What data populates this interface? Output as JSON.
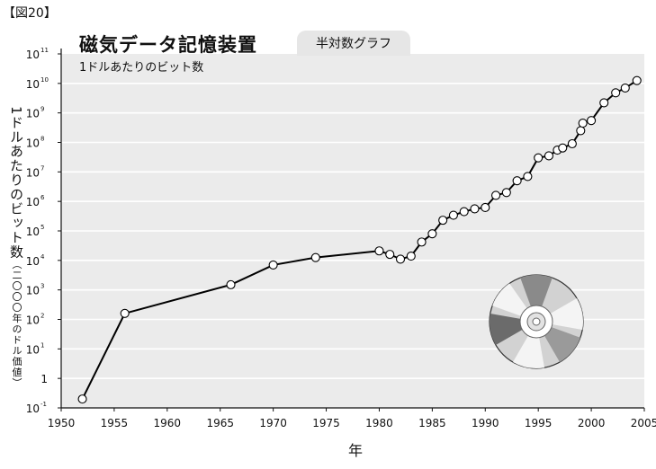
{
  "figure_label": "【図20】",
  "scale_tab": "半対数グラフ",
  "chart_data": {
    "type": "line",
    "title": "磁気データ記憶装置",
    "subtitle": "1ドルあたりのビット数",
    "xlabel": "年",
    "ylabel": "1ドルあたりのビット数",
    "ylabel_note": "（二〇〇〇年のドル価値）",
    "y_scale": "log10",
    "xlim": [
      1950,
      2005
    ],
    "ylim_exponent": [
      -1,
      11
    ],
    "x_ticks": [
      1950,
      1955,
      1960,
      1965,
      1970,
      1975,
      1980,
      1985,
      1990,
      1995,
      2000,
      2005
    ],
    "y_ticks": [
      {
        "base": "10",
        "exp": "11"
      },
      {
        "base": "10",
        "exp": "10"
      },
      {
        "base": "10",
        "exp": "9"
      },
      {
        "base": "10",
        "exp": "8"
      },
      {
        "base": "10",
        "exp": "7"
      },
      {
        "base": "10",
        "exp": "6"
      },
      {
        "base": "10",
        "exp": "5"
      },
      {
        "base": "10",
        "exp": "4"
      },
      {
        "base": "10",
        "exp": "3"
      },
      {
        "base": "10",
        "exp": "2"
      },
      {
        "base": "10",
        "exp": "1"
      },
      {
        "base": "1",
        "exp": ""
      },
      {
        "base": "10",
        "exp": "-1"
      }
    ],
    "grid": true,
    "background": "#ebebeb",
    "line_color": "#000000",
    "marker": "open-circle",
    "points": [
      {
        "x": 1952,
        "y": 0.2
      },
      {
        "x": 1956,
        "y": 160
      },
      {
        "x": 1966,
        "y": 1500
      },
      {
        "x": 1970,
        "y": 7000
      },
      {
        "x": 1974,
        "y": 12500
      },
      {
        "x": 1980,
        "y": 21000
      },
      {
        "x": 1981,
        "y": 16000
      },
      {
        "x": 1982,
        "y": 11000
      },
      {
        "x": 1983,
        "y": 14000
      },
      {
        "x": 1984,
        "y": 42000
      },
      {
        "x": 1985,
        "y": 80000
      },
      {
        "x": 1986,
        "y": 230000
      },
      {
        "x": 1987,
        "y": 340000
      },
      {
        "x": 1988,
        "y": 450000
      },
      {
        "x": 1989,
        "y": 560000
      },
      {
        "x": 1990,
        "y": 620000
      },
      {
        "x": 1991,
        "y": 1600000
      },
      {
        "x": 1992,
        "y": 2000000
      },
      {
        "x": 1993,
        "y": 5000000
      },
      {
        "x": 1994,
        "y": 7000000
      },
      {
        "x": 1995,
        "y": 30000000
      },
      {
        "x": 1996,
        "y": 35000000
      },
      {
        "x": 1996.8,
        "y": 55000000
      },
      {
        "x": 1997.3,
        "y": 65000000
      },
      {
        "x": 1998.2,
        "y": 90000000
      },
      {
        "x": 1999,
        "y": 250000000
      },
      {
        "x": 1999.2,
        "y": 450000000
      },
      {
        "x": 2000,
        "y": 550000000
      },
      {
        "x": 2001.2,
        "y": 2200000000
      },
      {
        "x": 2002.3,
        "y": 4800000000
      },
      {
        "x": 2003.2,
        "y": 7000000000
      },
      {
        "x": 2004.3,
        "y": 12500000000
      }
    ]
  }
}
